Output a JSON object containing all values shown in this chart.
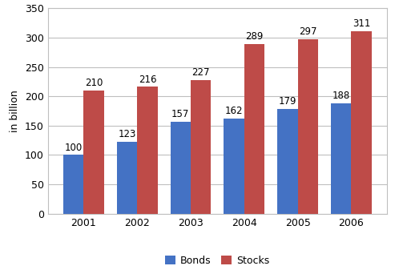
{
  "years": [
    "2001",
    "2002",
    "2003",
    "2004",
    "2005",
    "2006"
  ],
  "bonds": [
    100,
    123,
    157,
    162,
    179,
    188
  ],
  "stocks": [
    210,
    216,
    227,
    289,
    297,
    311
  ],
  "bonds_color": "#4472C4",
  "stocks_color": "#BE4B48",
  "ylabel": "in billion",
  "ylim": [
    0,
    350
  ],
  "yticks": [
    0,
    50,
    100,
    150,
    200,
    250,
    300,
    350
  ],
  "legend_labels": [
    "Bonds",
    "Stocks"
  ],
  "bar_width": 0.38,
  "background_color": "#ffffff",
  "grid_color": "#bfbfbf",
  "label_fontsize": 8.5,
  "axis_fontsize": 9,
  "legend_fontsize": 9
}
